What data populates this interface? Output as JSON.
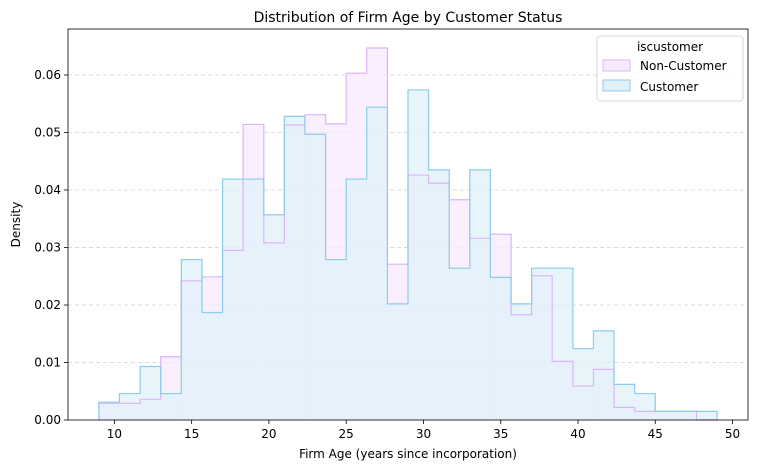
{
  "chart_data": {
    "type": "histogram",
    "title": "Distribution of Firm Age by Customer Status",
    "xlabel": "Firm Age (years since incorporation)",
    "ylabel": "Density",
    "xlim": [
      7,
      51
    ],
    "ylim": [
      0,
      0.068
    ],
    "xticks": [
      10,
      15,
      20,
      25,
      30,
      35,
      40,
      45,
      50
    ],
    "yticks": [
      0.0,
      0.01,
      0.02,
      0.03,
      0.04,
      0.05,
      0.06
    ],
    "ytick_labels": [
      "0.00",
      "0.01",
      "0.02",
      "0.03",
      "0.04",
      "0.05",
      "0.06"
    ],
    "grid": "y dashed",
    "legend": {
      "title": "iscustomer",
      "position": "top-right"
    },
    "bin_edges": [
      9.0,
      10.33,
      11.67,
      13.0,
      14.33,
      15.67,
      17.0,
      18.33,
      19.67,
      21.0,
      22.33,
      23.67,
      25.0,
      26.33,
      27.67,
      29.0,
      30.33,
      31.67,
      33.0,
      34.33,
      35.67,
      37.0,
      38.33,
      39.67,
      41.0,
      42.33,
      43.67,
      45.0,
      46.33,
      47.67,
      49.0
    ],
    "series": [
      {
        "name": "Non-Customer",
        "fill": "#f7eafd",
        "edge": "#dcb5f7",
        "values": [
          0.0029,
          0.0029,
          0.0036,
          0.011,
          0.0242,
          0.0249,
          0.0295,
          0.0514,
          0.0308,
          0.0513,
          0.0531,
          0.0515,
          0.0603,
          0.0647,
          0.0271,
          0.0426,
          0.0412,
          0.0383,
          0.0316,
          0.0323,
          0.0183,
          0.0251,
          0.0102,
          0.0059,
          0.0088,
          0.0022,
          0.0015,
          0.0015,
          0.0015,
          0.0
        ]
      },
      {
        "name": "Customer",
        "fill": "#dff2fa",
        "edge": "#8ccbea",
        "values": [
          0.0031,
          0.0046,
          0.0093,
          0.0046,
          0.0279,
          0.0187,
          0.0419,
          0.0419,
          0.0357,
          0.0528,
          0.0497,
          0.0279,
          0.0419,
          0.0544,
          0.0202,
          0.0574,
          0.0435,
          0.0264,
          0.0435,
          0.0248,
          0.0202,
          0.0264,
          0.0264,
          0.0124,
          0.0155,
          0.0062,
          0.0046,
          0.0015,
          0.0015,
          0.0015
        ]
      }
    ]
  }
}
